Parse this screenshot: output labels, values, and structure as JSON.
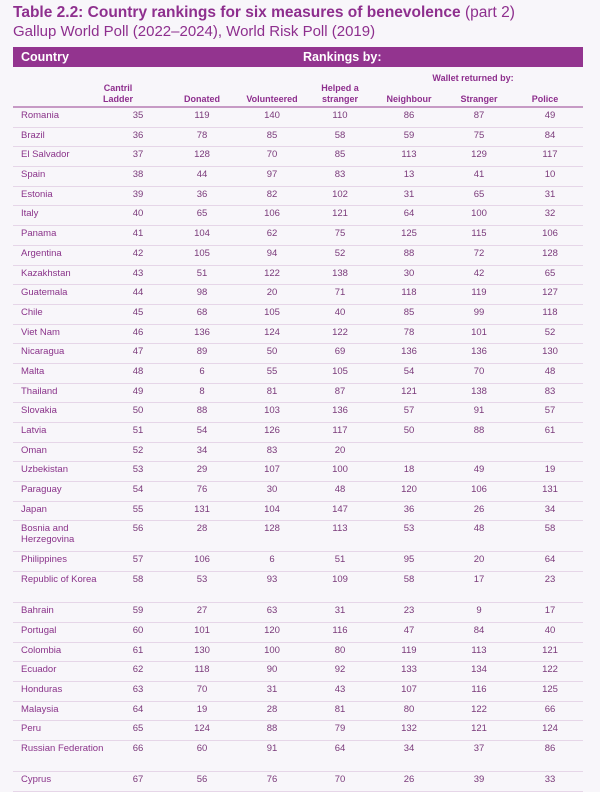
{
  "title": {
    "bold": "Table 2.2: Country rankings for six measures of benevolence",
    "part": "(part 2)"
  },
  "subtitle": "Gallup World Poll (2022–2024), World Risk Poll (2019)",
  "header_bar": {
    "country": "Country",
    "rankings": "Rankings by:"
  },
  "columns": {
    "cantril": "Cantril Ladder",
    "donated": "Donated",
    "volunteered": "Volunteered",
    "helped": "Helped a stranger",
    "wallet_group": "Wallet returned by:",
    "neighbour": "Neighbour",
    "stranger": "Stranger",
    "police": "Police"
  },
  "colors": {
    "accent": "#93348f",
    "background": "#f8f6fa"
  },
  "rows": [
    [
      "Romania",
      "35",
      "119",
      "140",
      "110",
      "86",
      "87",
      "49"
    ],
    [
      "Brazil",
      "36",
      "78",
      "85",
      "58",
      "59",
      "75",
      "84"
    ],
    [
      "El Salvador",
      "37",
      "128",
      "70",
      "85",
      "113",
      "129",
      "117"
    ],
    [
      "Spain",
      "38",
      "44",
      "97",
      "83",
      "13",
      "41",
      "10"
    ],
    [
      "Estonia",
      "39",
      "36",
      "82",
      "102",
      "31",
      "65",
      "31"
    ],
    [
      "Italy",
      "40",
      "65",
      "106",
      "121",
      "64",
      "100",
      "32"
    ],
    [
      "Panama",
      "41",
      "104",
      "62",
      "75",
      "125",
      "115",
      "106"
    ],
    [
      "Argentina",
      "42",
      "105",
      "94",
      "52",
      "88",
      "72",
      "128"
    ],
    [
      "Kazakhstan",
      "43",
      "51",
      "122",
      "138",
      "30",
      "42",
      "65"
    ],
    [
      "Guatemala",
      "44",
      "98",
      "20",
      "71",
      "118",
      "119",
      "127"
    ],
    [
      "Chile",
      "45",
      "68",
      "105",
      "40",
      "85",
      "99",
      "118"
    ],
    [
      "Viet Nam",
      "46",
      "136",
      "124",
      "122",
      "78",
      "101",
      "52"
    ],
    [
      "Nicaragua",
      "47",
      "89",
      "50",
      "69",
      "136",
      "136",
      "130"
    ],
    [
      "Malta",
      "48",
      "6",
      "55",
      "105",
      "54",
      "70",
      "48"
    ],
    [
      "Thailand",
      "49",
      "8",
      "81",
      "87",
      "121",
      "138",
      "83"
    ],
    [
      "Slovakia",
      "50",
      "88",
      "103",
      "136",
      "57",
      "91",
      "57"
    ],
    [
      "Latvia",
      "51",
      "54",
      "126",
      "117",
      "50",
      "88",
      "61"
    ],
    [
      "Oman",
      "52",
      "34",
      "83",
      "20",
      "",
      "",
      ""
    ],
    [
      "Uzbekistan",
      "53",
      "29",
      "107",
      "100",
      "18",
      "49",
      "19"
    ],
    [
      "Paraguay",
      "54",
      "76",
      "30",
      "48",
      "120",
      "106",
      "131"
    ],
    [
      "Japan",
      "55",
      "131",
      "104",
      "147",
      "36",
      "26",
      "34"
    ],
    [
      "Bosnia and Herzegovina",
      "56",
      "28",
      "128",
      "113",
      "53",
      "48",
      "58"
    ],
    [
      "Philippines",
      "57",
      "106",
      "6",
      "51",
      "95",
      "20",
      "64"
    ],
    [
      "Republic of Korea",
      "58",
      "53",
      "93",
      "109",
      "58",
      "17",
      "23"
    ],
    [
      "Bahrain",
      "59",
      "27",
      "63",
      "31",
      "23",
      "9",
      "17"
    ],
    [
      "Portugal",
      "60",
      "101",
      "120",
      "116",
      "47",
      "84",
      "40"
    ],
    [
      "Colombia",
      "61",
      "130",
      "100",
      "80",
      "119",
      "113",
      "121"
    ],
    [
      "Ecuador",
      "62",
      "118",
      "90",
      "92",
      "133",
      "134",
      "122"
    ],
    [
      "Honduras",
      "63",
      "70",
      "31",
      "43",
      "107",
      "116",
      "125"
    ],
    [
      "Malaysia",
      "64",
      "19",
      "28",
      "81",
      "80",
      "122",
      "66"
    ],
    [
      "Peru",
      "65",
      "124",
      "88",
      "79",
      "132",
      "121",
      "124"
    ],
    [
      "Russian Federation",
      "66",
      "60",
      "91",
      "64",
      "34",
      "37",
      "86"
    ],
    [
      "Cyprus",
      "67",
      "56",
      "76",
      "70",
      "26",
      "39",
      "33"
    ]
  ]
}
